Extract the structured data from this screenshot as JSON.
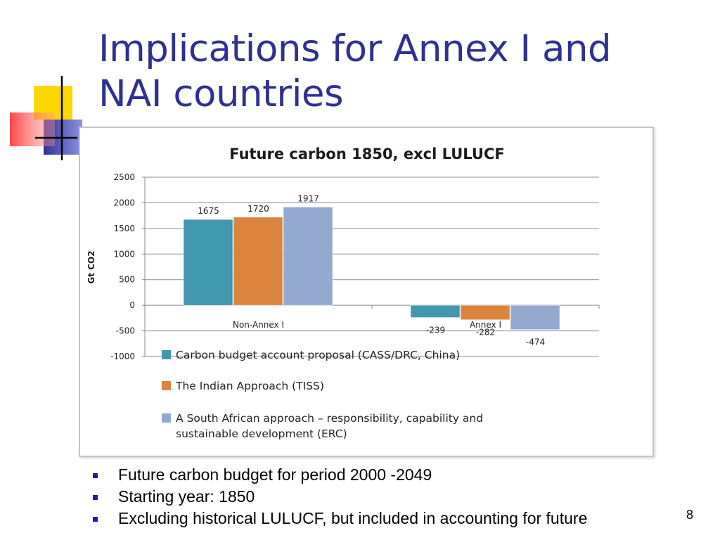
{
  "slide": {
    "title_lines": [
      "Implications for Annex I and",
      "NAI countries"
    ],
    "bullets": [
      "Future carbon budget for period 2000 -2049",
      "Starting year: 1850",
      "Excluding historical LULUCF, but included in accounting for future"
    ],
    "page_number": "8"
  },
  "chart_data": {
    "type": "bar",
    "title": "Future carbon 1850, excl LULUCF",
    "ylabel": "Gt CO2",
    "xlabel": "",
    "ylim": [
      -1000,
      2500
    ],
    "yticks": [
      2500,
      2000,
      1500,
      1000,
      500,
      0,
      -500,
      -1000
    ],
    "categories": [
      "Non-Annex I",
      "Annex I"
    ],
    "series": [
      {
        "name": "Carbon budget account proposal (CASS/DRC, China)",
        "color": "#4198af",
        "values": [
          1675,
          -239
        ]
      },
      {
        "name": "The Indian Approach (TISS)",
        "color": "#db843d",
        "values": [
          1720,
          -282
        ]
      },
      {
        "name": "A South African approach – responsibility, capability and sustainable development (ERC)",
        "color": "#93a9cf",
        "values": [
          1917,
          -474
        ]
      }
    ],
    "grid": true,
    "legend_position": "bottom"
  },
  "colors": {
    "title": "#2e3192",
    "bullet": "#1f1ab0"
  }
}
